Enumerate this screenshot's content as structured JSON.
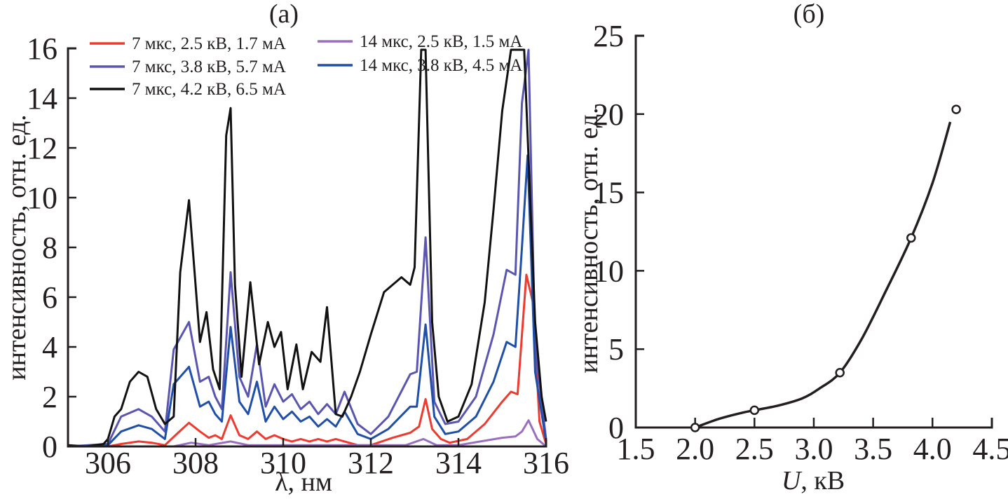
{
  "chart_data": [
    {
      "type": "line",
      "panel_label": "(a)",
      "title": "",
      "xlabel": "λ, нм",
      "ylabel": "интенсивность, отн. ед.",
      "xlim": [
        305.1,
        316
      ],
      "ylim": [
        0,
        16
      ],
      "xticks": [
        306,
        308,
        310,
        312,
        314,
        316
      ],
      "xtick_labels": [
        "306",
        "308",
        "310",
        "312",
        "314",
        "316"
      ],
      "yticks": [
        0,
        2,
        4,
        6,
        8,
        10,
        12,
        14,
        16
      ],
      "ytick_labels": [
        "0",
        "2",
        "4",
        "6",
        "8",
        "10",
        "12",
        "14",
        "16"
      ],
      "grid": false,
      "legend_position": "top",
      "series": [
        {
          "name": "7 мкс, 2.5 кВ, 1.7 мА",
          "color": "#ee3a2f",
          "x": [
            305.1,
            306.0,
            306.3,
            306.7,
            307.0,
            307.3,
            307.6,
            307.85,
            308.1,
            308.3,
            308.45,
            308.6,
            308.8,
            309.0,
            309.2,
            309.4,
            309.6,
            309.8,
            310.0,
            310.2,
            310.4,
            310.6,
            310.8,
            311.0,
            311.2,
            311.4,
            311.7,
            312.0,
            312.5,
            312.9,
            313.1,
            313.25,
            313.4,
            313.6,
            313.8,
            314.2,
            314.6,
            315.0,
            315.2,
            315.35,
            315.55,
            315.7,
            315.85,
            316.0
          ],
          "y": [
            0.0,
            0.0,
            0.1,
            0.2,
            0.15,
            0.05,
            0.55,
            0.95,
            0.6,
            0.35,
            0.45,
            0.3,
            1.25,
            0.45,
            0.3,
            0.6,
            0.3,
            0.45,
            0.3,
            0.2,
            0.3,
            0.2,
            0.3,
            0.2,
            0.3,
            0.2,
            0.05,
            0.05,
            0.35,
            0.55,
            0.8,
            1.9,
            0.7,
            0.3,
            0.15,
            0.3,
            0.9,
            1.8,
            2.2,
            2.1,
            6.9,
            5.8,
            1.0,
            0.1
          ]
        },
        {
          "name": "14 мкс, 2.5 кВ, 1.5 мА",
          "color": "#9b6fc0",
          "x": [
            305.1,
            307.5,
            307.9,
            308.3,
            308.8,
            309.2,
            310.0,
            311.0,
            312.0,
            312.8,
            313.2,
            313.5,
            314.0,
            314.5,
            315.0,
            315.3,
            315.45,
            315.6,
            315.8,
            316.0
          ],
          "y": [
            0.0,
            0.0,
            0.15,
            0.05,
            0.2,
            0.05,
            0.05,
            0.05,
            0.05,
            0.05,
            0.3,
            0.05,
            0.05,
            0.2,
            0.35,
            0.4,
            0.6,
            1.05,
            0.3,
            0.0
          ]
        },
        {
          "name": "7 мкс, 3.8 кВ, 5.7 мА",
          "color": "#5a55b0",
          "x": [
            305.1,
            306.0,
            306.3,
            306.7,
            307.0,
            307.3,
            307.5,
            307.85,
            308.1,
            308.3,
            308.45,
            308.6,
            308.8,
            309.0,
            309.2,
            309.4,
            309.6,
            309.8,
            310.0,
            310.2,
            310.4,
            310.6,
            310.8,
            311.0,
            311.2,
            311.4,
            311.7,
            312.0,
            312.4,
            312.9,
            313.05,
            313.25,
            313.45,
            313.7,
            314.0,
            314.4,
            314.8,
            315.1,
            315.3,
            315.45,
            315.6,
            315.75,
            316.0
          ],
          "y": [
            0.0,
            0.1,
            1.2,
            1.5,
            1.2,
            0.6,
            3.9,
            5.0,
            2.6,
            2.8,
            2.0,
            1.5,
            7.0,
            2.8,
            2.0,
            4.1,
            1.6,
            2.5,
            1.8,
            2.1,
            1.5,
            1.8,
            1.3,
            1.7,
            1.3,
            2.2,
            0.9,
            0.5,
            1.2,
            2.9,
            3.0,
            8.4,
            1.8,
            0.9,
            1.0,
            2.0,
            4.5,
            7.1,
            6.9,
            13.8,
            16.0,
            4.0,
            0.3
          ]
        },
        {
          "name": "14 мкс, 3.8 кВ, 4.5 мА",
          "color": "#1f4fa8",
          "x": [
            305.1,
            306.0,
            306.3,
            306.7,
            307.0,
            307.3,
            307.5,
            307.85,
            308.1,
            308.3,
            308.45,
            308.6,
            308.8,
            309.0,
            309.2,
            309.4,
            309.6,
            309.8,
            310.0,
            310.2,
            310.4,
            310.6,
            310.8,
            311.0,
            311.2,
            311.4,
            311.7,
            312.0,
            312.4,
            312.9,
            313.05,
            313.25,
            313.45,
            313.7,
            314.0,
            314.4,
            314.8,
            315.1,
            315.3,
            315.45,
            315.58,
            315.75,
            316.0
          ],
          "y": [
            0.0,
            0.05,
            0.6,
            0.85,
            0.7,
            0.3,
            2.5,
            3.2,
            1.6,
            1.8,
            1.3,
            1.0,
            4.8,
            1.8,
            1.3,
            2.6,
            1.0,
            1.6,
            1.1,
            1.4,
            1.0,
            1.2,
            0.8,
            1.1,
            0.8,
            1.4,
            0.5,
            0.3,
            0.7,
            1.6,
            1.6,
            4.9,
            1.2,
            0.5,
            0.6,
            1.2,
            2.6,
            4.2,
            4.0,
            8.0,
            11.7,
            3.0,
            0.2
          ]
        },
        {
          "name": "7 мкс, 4.2 кВ, 6.5 мА",
          "color": "#111111",
          "x": [
            305.1,
            305.5,
            305.9,
            306.0,
            306.15,
            306.3,
            306.5,
            306.7,
            306.9,
            307.1,
            307.3,
            307.5,
            307.65,
            307.85,
            308.1,
            308.25,
            308.4,
            308.55,
            308.7,
            308.8,
            308.9,
            309.05,
            309.25,
            309.45,
            309.65,
            309.8,
            309.95,
            310.1,
            310.3,
            310.45,
            310.65,
            310.85,
            311.0,
            311.2,
            311.35,
            311.55,
            311.75,
            312.0,
            312.3,
            312.7,
            312.9,
            313.0,
            313.15,
            313.25,
            313.4,
            313.55,
            313.75,
            314.0,
            314.3,
            314.6,
            314.8,
            315.0,
            315.2,
            315.5,
            315.75,
            315.9,
            316.0
          ],
          "y": [
            0.05,
            0.0,
            0.1,
            0.3,
            1.2,
            1.5,
            2.6,
            3.0,
            2.8,
            1.5,
            0.9,
            1.2,
            7.0,
            9.9,
            4.2,
            5.4,
            3.1,
            2.3,
            12.5,
            13.6,
            6.5,
            2.8,
            6.6,
            3.3,
            5.0,
            4.0,
            4.6,
            2.3,
            4.1,
            2.3,
            3.8,
            3.4,
            5.6,
            1.3,
            1.2,
            2.0,
            3.0,
            4.5,
            6.2,
            6.8,
            6.5,
            7.2,
            16.0,
            16.0,
            5.0,
            2.0,
            1.0,
            1.2,
            2.5,
            5.8,
            9.5,
            13.5,
            16.0,
            16.0,
            5.0,
            2.0,
            1.0
          ]
        }
      ]
    },
    {
      "type": "scatter",
      "panel_label": "(б)",
      "title": "",
      "xlabel_italic": "U",
      "xlabel_rest": ", кВ",
      "ylabel": "интенсивность, отн. ед.",
      "xlim": [
        1.5,
        4.5
      ],
      "ylim": [
        0,
        25
      ],
      "xticks": [
        1.5,
        2.0,
        2.5,
        3.0,
        3.5,
        4.0,
        4.5
      ],
      "xtick_labels": [
        "1.5",
        "2.0",
        "2.5",
        "3.0",
        "3.5",
        "4.0",
        "4.5"
      ],
      "yticks": [
        0,
        5,
        10,
        15,
        20,
        25
      ],
      "ytick_labels": [
        "0",
        "5",
        "10",
        "15",
        "20",
        "25"
      ],
      "grid": false,
      "series": [
        {
          "name": "points",
          "x": [
            2.0,
            2.5,
            3.22,
            3.82,
            4.2
          ],
          "y": [
            0.0,
            1.1,
            3.5,
            12.1,
            20.3
          ]
        }
      ],
      "fit_curve": {
        "x": [
          2.0,
          2.2,
          2.4,
          2.5,
          2.7,
          2.9,
          3.05,
          3.22,
          3.4,
          3.6,
          3.82,
          4.0,
          4.15
        ],
        "y": [
          0.0,
          0.55,
          0.95,
          1.1,
          1.4,
          1.85,
          2.5,
          3.5,
          5.6,
          8.6,
          12.1,
          15.6,
          19.5
        ]
      }
    }
  ]
}
